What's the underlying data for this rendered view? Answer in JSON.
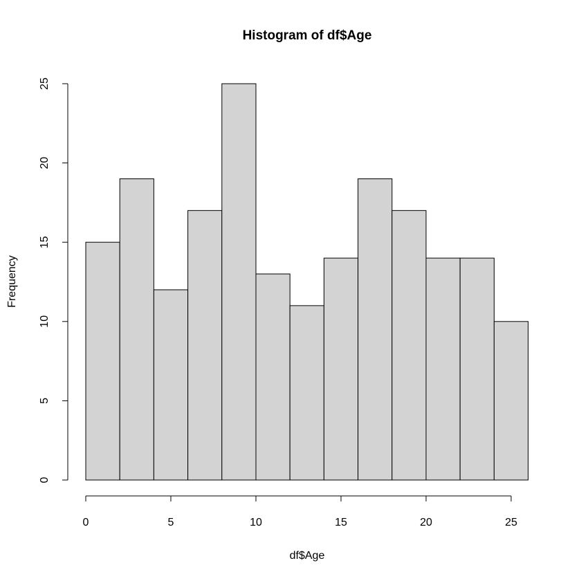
{
  "chart_data": {
    "type": "histogram",
    "title": "Histogram of df$Age",
    "xlabel": "df$Age",
    "ylabel": "Frequency",
    "bins": [
      0,
      2,
      4,
      6,
      8,
      10,
      12,
      14,
      16,
      18,
      20,
      22,
      24,
      26
    ],
    "values": [
      15,
      19,
      12,
      17,
      25,
      13,
      11,
      14,
      19,
      17,
      14,
      14,
      10
    ],
    "color": "#d3d3d3",
    "xlim": [
      0,
      26
    ],
    "ylim": [
      0,
      25
    ],
    "xticks": [
      0,
      5,
      10,
      15,
      20,
      25
    ],
    "yticks": [
      0,
      5,
      10,
      15,
      20,
      25
    ]
  }
}
